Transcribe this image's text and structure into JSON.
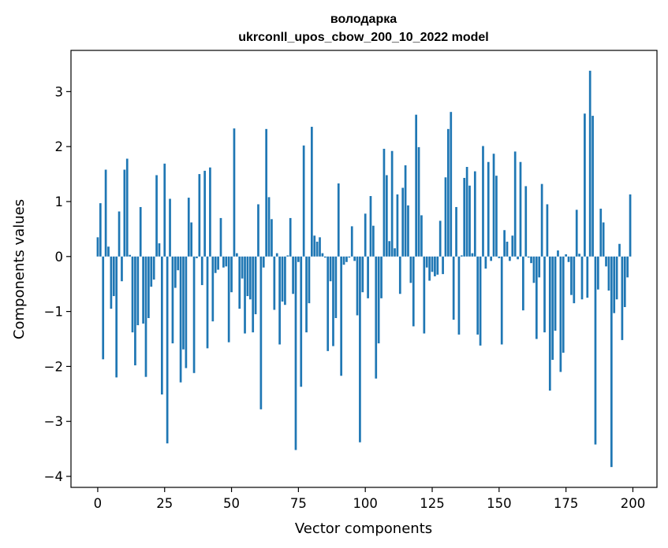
{
  "chart_data": {
    "type": "bar",
    "title": "володарка",
    "subtitle": "ukrconll_upos_cbow_200_10_2022 model",
    "xlabel": "Vector components",
    "ylabel": "Components values",
    "xlim": [
      -10,
      209
    ],
    "ylim": [
      -4.2,
      3.75
    ],
    "xticks": [
      0,
      25,
      50,
      75,
      100,
      125,
      150,
      175,
      200
    ],
    "yticks": [
      3,
      2,
      1,
      0,
      -1,
      -2,
      -3,
      -4
    ],
    "bar_color": "#1f77b4",
    "grid": false,
    "x": [
      0,
      1,
      2,
      3,
      4,
      5,
      6,
      7,
      8,
      9,
      10,
      11,
      12,
      13,
      14,
      15,
      16,
      17,
      18,
      19,
      20,
      21,
      22,
      23,
      24,
      25,
      26,
      27,
      28,
      29,
      30,
      31,
      32,
      33,
      34,
      35,
      36,
      37,
      38,
      39,
      40,
      41,
      42,
      43,
      44,
      45,
      46,
      47,
      48,
      49,
      50,
      51,
      52,
      53,
      54,
      55,
      56,
      57,
      58,
      59,
      60,
      61,
      62,
      63,
      64,
      65,
      66,
      67,
      68,
      69,
      70,
      71,
      72,
      73,
      74,
      75,
      76,
      77,
      78,
      79,
      80,
      81,
      82,
      83,
      84,
      85,
      86,
      87,
      88,
      89,
      90,
      91,
      92,
      93,
      94,
      95,
      96,
      97,
      98,
      99,
      100,
      101,
      102,
      103,
      104,
      105,
      106,
      107,
      108,
      109,
      110,
      111,
      112,
      113,
      114,
      115,
      116,
      117,
      118,
      119,
      120,
      121,
      122,
      123,
      124,
      125,
      126,
      127,
      128,
      129,
      130,
      131,
      132,
      133,
      134,
      135,
      136,
      137,
      138,
      139,
      140,
      141,
      142,
      143,
      144,
      145,
      146,
      147,
      148,
      149,
      150,
      151,
      152,
      153,
      154,
      155,
      156,
      157,
      158,
      159,
      160,
      161,
      162,
      163,
      164,
      165,
      166,
      167,
      168,
      169,
      170,
      171,
      172,
      173,
      174,
      175,
      176,
      177,
      178,
      179,
      180,
      181,
      182,
      183,
      184,
      185,
      186,
      187,
      188,
      189,
      190,
      191,
      192,
      193,
      194,
      195,
      196,
      197,
      198,
      199
    ],
    "values": [
      0.35,
      0.97,
      -1.87,
      1.58,
      0.18,
      -0.95,
      -0.72,
      -2.2,
      0.82,
      -0.45,
      1.58,
      1.78,
      0.03,
      -1.38,
      -1.98,
      -1.25,
      0.9,
      -1.22,
      -2.19,
      -1.12,
      -0.55,
      -0.42,
      1.48,
      0.24,
      -2.51,
      1.69,
      -3.4,
      1.05,
      -1.58,
      -0.57,
      -0.25,
      -2.29,
      -1.69,
      -2.03,
      1.07,
      0.62,
      -2.12,
      -0.03,
      1.5,
      -0.52,
      1.56,
      -1.67,
      1.62,
      -1.18,
      -0.3,
      -0.24,
      0.7,
      -0.2,
      -0.18,
      -1.56,
      -0.65,
      2.33,
      0.06,
      -0.95,
      -0.4,
      -1.4,
      -0.72,
      -0.78,
      -1.38,
      -1.05,
      0.95,
      -2.78,
      -0.2,
      2.32,
      1.08,
      0.68,
      -0.97,
      0.06,
      -1.6,
      -0.82,
      -0.88,
      0.02,
      0.7,
      -0.68,
      -3.52,
      -0.1,
      -2.37,
      2.02,
      -1.38,
      -0.85,
      2.36,
      0.38,
      0.27,
      0.35,
      0.06,
      -0.02,
      -1.72,
      -0.45,
      -1.63,
      -1.12,
      1.33,
      -2.17,
      -0.15,
      -0.1,
      -0.02,
      0.55,
      -0.08,
      -1.07,
      -3.38,
      -0.65,
      0.78,
      -0.76,
      1.1,
      0.56,
      -2.22,
      -1.58,
      -0.76,
      1.96,
      1.48,
      0.28,
      1.92,
      0.15,
      1.13,
      -0.68,
      1.25,
      1.66,
      0.93,
      -0.48,
      -1.27,
      2.58,
      1.99,
      0.75,
      -1.4,
      -0.2,
      -0.44,
      -0.28,
      -0.36,
      -0.33,
      0.65,
      -0.32,
      1.44,
      2.32,
      2.63,
      -1.15,
      0.9,
      -1.42,
      0.02,
      1.43,
      1.63,
      1.29,
      0.06,
      1.55,
      -1.42,
      -1.62,
      2.01,
      -0.22,
      1.72,
      -0.08,
      1.87,
      1.47,
      -0.03,
      -1.6,
      0.48,
      0.27,
      -0.08,
      0.38,
      1.91,
      -0.05,
      1.72,
      -0.98,
      1.28,
      -0.02,
      -0.12,
      -0.48,
      -1.5,
      -0.38,
      1.32,
      -1.38,
      0.95,
      -2.44,
      -1.88,
      -1.35,
      0.11,
      -2.1,
      -1.75,
      0.04,
      -0.1,
      -0.7,
      -0.85,
      0.85,
      0.05,
      -0.78,
      2.6,
      -0.75,
      3.38,
      2.56,
      -3.42,
      -0.6,
      0.87,
      0.62,
      -0.18,
      -0.62,
      -3.83,
      -1.03,
      -0.78,
      0.23,
      -1.52,
      -0.92,
      -0.38,
      1.13
    ]
  }
}
